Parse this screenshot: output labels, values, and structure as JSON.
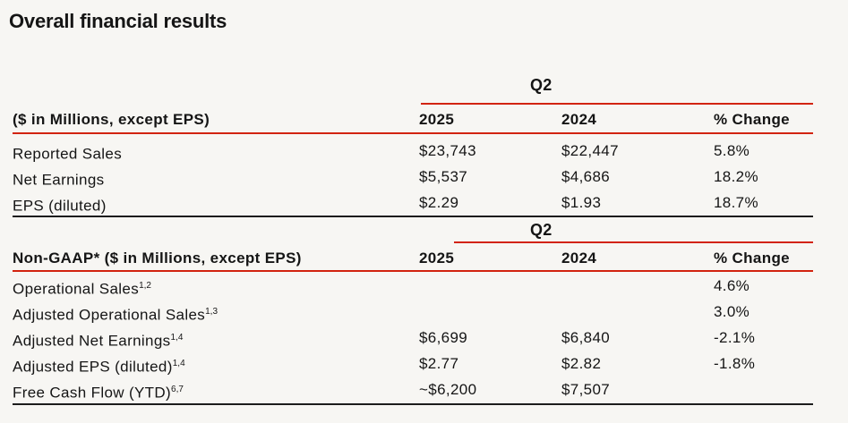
{
  "page": {
    "title": "Overall financial results"
  },
  "colors": {
    "accent_red": "#d2230f",
    "background": "#f7f6f3",
    "text": "#151515"
  },
  "table_gaap": {
    "group_header": "Q2",
    "columns": [
      "($ in Millions, except EPS)",
      "2025",
      "2024",
      "% Change"
    ],
    "rows": [
      {
        "label": "Reported Sales",
        "sup": "",
        "y2025": "$23,743",
        "y2024": "$22,447",
        "change": "5.8%"
      },
      {
        "label": "Net Earnings",
        "sup": "",
        "y2025": "$5,537",
        "y2024": "$4,686",
        "change": "18.2%"
      },
      {
        "label": "EPS (diluted)",
        "sup": "",
        "y2025": "$2.29",
        "y2024": "$1.93",
        "change": "18.7%"
      }
    ]
  },
  "table_non_gaap": {
    "group_header": "Q2",
    "columns": [
      "Non-GAAP* ($ in Millions, except EPS)",
      "2025",
      "2024",
      "% Change"
    ],
    "rows": [
      {
        "label": "Operational Sales",
        "sup": "1,2",
        "y2025": "",
        "y2024": "",
        "change": "4.6%"
      },
      {
        "label": "Adjusted Operational Sales",
        "sup": "1,3",
        "y2025": "",
        "y2024": "",
        "change": "3.0%"
      },
      {
        "label": "Adjusted Net Earnings",
        "sup": "1,4",
        "y2025": "$6,699",
        "y2024": "$6,840",
        "change": "-2.1%"
      },
      {
        "label": "Adjusted EPS (diluted)",
        "sup": "1,4",
        "y2025": "$2.77",
        "y2024": "$2.82",
        "change": "-1.8%"
      },
      {
        "label": "Free Cash Flow (YTD)",
        "sup": "6,7",
        "y2025": "~$6,200",
        "y2024": "$7,507",
        "change": ""
      }
    ]
  }
}
